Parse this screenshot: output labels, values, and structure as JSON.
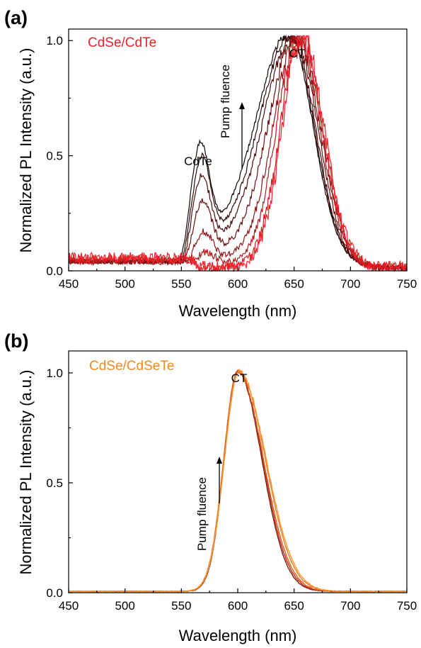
{
  "chart_data": [
    {
      "type": "line",
      "panel_label": "(a)",
      "sample_label": "CdSe/CdTe",
      "sample_label_color": "#e8232b",
      "xlabel": "Wavelength (nm)",
      "ylabel": "Normalized PL Intensity (a.u.)",
      "xlim": [
        450,
        750
      ],
      "ylim": [
        0,
        1.05
      ],
      "xticks": [
        450,
        500,
        550,
        600,
        650,
        700,
        750
      ],
      "yticks": [
        0.0,
        0.5,
        1.0
      ],
      "ytick_labels": [
        "0.0",
        "0.5",
        "1.0"
      ],
      "grid": false,
      "annotations": {
        "peak_label": "CT",
        "shoulder_label": "CdTe",
        "arrow_label": "Pump fluence"
      },
      "series_colors": [
        "#120606",
        "#2e0a0a",
        "#4c0c0c",
        "#6e0f10",
        "#931317",
        "#b8181d",
        "#d91e24",
        "#ee2228"
      ],
      "series": [
        {
          "peak": 646,
          "ct_width_left": 40,
          "ct_width_right": 30,
          "shoulder_amp": 0.4,
          "shoulder_center": 567,
          "edge": 553,
          "base": 0.04,
          "noise": 0.008
        },
        {
          "peak": 647,
          "ct_width_left": 38,
          "ct_width_right": 30,
          "shoulder_amp": 0.36,
          "shoulder_center": 568,
          "edge": 554,
          "base": 0.04,
          "noise": 0.012
        },
        {
          "peak": 648,
          "ct_width_left": 36,
          "ct_width_right": 30,
          "shoulder_amp": 0.3,
          "shoulder_center": 568,
          "edge": 555,
          "base": 0.04,
          "noise": 0.015
        },
        {
          "peak": 650,
          "ct_width_left": 33,
          "ct_width_right": 30,
          "shoulder_amp": 0.22,
          "shoulder_center": 569,
          "edge": 556,
          "base": 0.04,
          "noise": 0.018
        },
        {
          "peak": 652,
          "ct_width_left": 30,
          "ct_width_right": 30,
          "shoulder_amp": 0.12,
          "shoulder_center": 570,
          "edge": 558,
          "base": 0.04,
          "noise": 0.022
        },
        {
          "peak": 654,
          "ct_width_left": 28,
          "ct_width_right": 29,
          "shoulder_amp": 0.05,
          "shoulder_center": 572,
          "edge": 560,
          "base": 0.045,
          "noise": 0.028
        },
        {
          "peak": 656,
          "ct_width_left": 26,
          "ct_width_right": 28,
          "shoulder_amp": 0.0,
          "shoulder_center": 575,
          "edge": 562,
          "base": 0.05,
          "noise": 0.034
        },
        {
          "peak": 657,
          "ct_width_left": 25,
          "ct_width_right": 28,
          "shoulder_amp": 0.0,
          "shoulder_center": 575,
          "edge": 562,
          "base": 0.055,
          "noise": 0.042
        }
      ]
    },
    {
      "type": "line",
      "panel_label": "(b)",
      "sample_label": "CdSe/CdSeTe",
      "sample_label_color": "#f08a24",
      "xlabel": "Wavelength (nm)",
      "ylabel": "Normalized PL Intensity (a.u.)",
      "xlim": [
        450,
        750
      ],
      "ylim": [
        0,
        1.1
      ],
      "xticks": [
        450,
        500,
        550,
        600,
        650,
        700,
        750
      ],
      "yticks": [
        0.0,
        0.5,
        1.0
      ],
      "ytick_labels": [
        "0.0",
        "0.5",
        "1.0"
      ],
      "grid": false,
      "annotations": {
        "peak_label": "CT",
        "arrow_label": "Pump fluence"
      },
      "series_colors": [
        "#7a1a10",
        "#b8321a",
        "#e0561f",
        "#f07a22",
        "#f59a2e"
      ],
      "series": [
        {
          "peak": 600,
          "width_left": 17,
          "width_right": 30,
          "noise": 0.004
        },
        {
          "peak": 600,
          "width_left": 17,
          "width_right": 31,
          "noise": 0.005
        },
        {
          "peak": 600,
          "width_left": 17.5,
          "width_right": 32,
          "noise": 0.006
        },
        {
          "peak": 601,
          "width_left": 18,
          "width_right": 33,
          "noise": 0.007
        },
        {
          "peak": 601,
          "width_left": 18,
          "width_right": 34,
          "noise": 0.008
        }
      ]
    }
  ]
}
